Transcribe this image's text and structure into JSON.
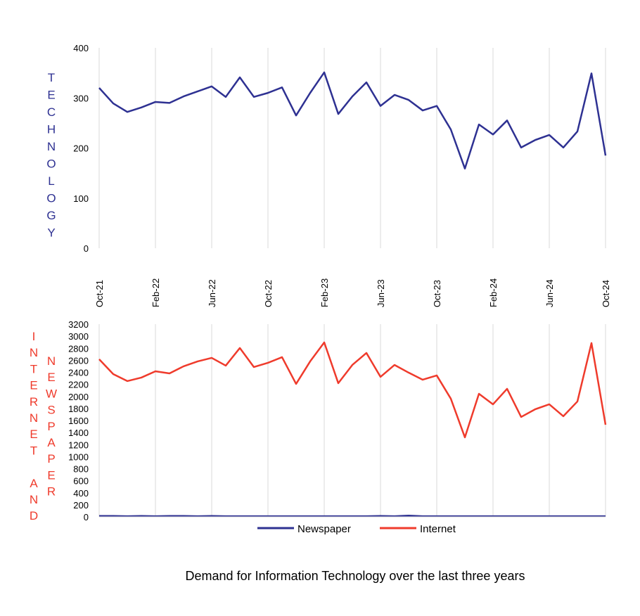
{
  "chart_data": [
    {
      "type": "line",
      "ylabel": "TECHNOLOGY",
      "ylim": [
        0,
        400
      ],
      "yticks": [
        "0",
        "100",
        "200",
        "300",
        "400"
      ],
      "xtick_labels": [
        "Oct-21",
        "Feb-22",
        "Jun-22",
        "Oct-22",
        "Feb-23",
        "Jun-23",
        "Oct-23",
        "Feb-24",
        "Jun-24",
        "Oct-24"
      ],
      "grid": "vertical every 4 months",
      "series": [
        {
          "name": "Technology",
          "color": "#2e3192",
          "values": [
            320,
            289,
            272,
            281,
            292,
            290,
            303,
            313,
            323,
            302,
            341,
            302,
            310,
            321,
            265,
            310,
            351,
            268,
            303,
            331,
            284,
            306,
            296,
            275,
            284,
            237,
            159,
            247,
            227,
            255,
            201,
            216,
            226,
            201,
            233,
            349,
            185
          ]
        }
      ]
    },
    {
      "type": "line",
      "ylabel_left": "INTERNET AND",
      "ylabel_right": "NEWSPAPER",
      "ylim": [
        0,
        3200
      ],
      "yticks": [
        "0",
        "200",
        "400",
        "600",
        "800",
        "1000",
        "1200",
        "1400",
        "1600",
        "1800",
        "2000",
        "2200",
        "2400",
        "2600",
        "2800",
        "3000",
        "3200"
      ],
      "legend": "bottom",
      "series": [
        {
          "name": "Newspaper",
          "color": "#2e3192",
          "values": [
            15,
            15,
            10,
            15,
            10,
            15,
            15,
            10,
            15,
            10,
            10,
            10,
            10,
            10,
            10,
            10,
            10,
            10,
            10,
            10,
            15,
            10,
            20,
            10,
            10,
            10,
            10,
            10,
            10,
            10,
            10,
            10,
            10,
            10,
            10,
            10,
            10
          ]
        },
        {
          "name": "Internet",
          "color": "#ef3b2c",
          "values": [
            2617,
            2371,
            2255,
            2313,
            2418,
            2383,
            2500,
            2582,
            2640,
            2512,
            2804,
            2488,
            2558,
            2652,
            2208,
            2582,
            2897,
            2220,
            2523,
            2722,
            2325,
            2523,
            2395,
            2278,
            2348,
            1963,
            1320,
            2044,
            1869,
            2126,
            1659,
            1787,
            1869,
            1671,
            1916,
            2886,
            1530
          ]
        }
      ]
    }
  ],
  "caption": "Demand for Information Technology over the last three years"
}
